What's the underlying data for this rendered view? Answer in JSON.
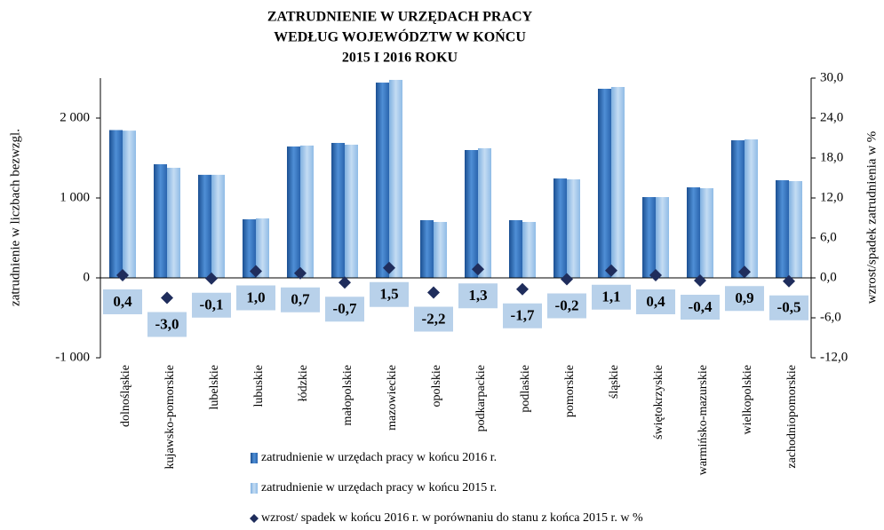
{
  "chart_data": {
    "type": "bar",
    "title": [
      "ZATRUDNIENIE  W  URZĘDACH  PRACY",
      "WEDŁUG  WOJEWÓDZTW  W  KOŃCU",
      "2015  I  2016 ROKU"
    ],
    "y_label": "zatrudnienie  w liczbach bezwzgl.",
    "y2_label": "wzrost/spadek zatrudnienia w %",
    "categories": [
      "dolnośląskie",
      "kujawsko-pomorskie",
      "lubelskie",
      "lubuskie",
      "łódzkie",
      "małopolskie",
      "mazowieckie",
      "opolskie",
      "podkarpackie",
      "podlaskie",
      "pomorskie",
      "śląskie",
      "świętokrzyskie",
      "warmińsko-mazurskie",
      "wielkopolskie",
      "zachodniopomorskie"
    ],
    "series": [
      {
        "name": "zatrudnienie w urzędach pracy w końcu 2016 r.",
        "color": "#2f6fb8",
        "values": [
          1850,
          1422,
          1290,
          733,
          1644,
          1689,
          2444,
          722,
          1600,
          722,
          1244,
          2367,
          1011,
          1133,
          1722,
          1222
        ]
      },
      {
        "name": "zatrudnienie  w urzędach pracy w końcu 2015 r.",
        "color": "#9dc4e8",
        "values": [
          1843,
          1378,
          1290,
          744,
          1656,
          1667,
          2478,
          700,
          1622,
          700,
          1233,
          2389,
          1011,
          1122,
          1733,
          1211
        ]
      },
      {
        "name": "wzrost/ spadek  w  końcu 2016 r. w porównaniu do stanu z końca 2015 r. w %",
        "color": "#1f2d5c",
        "axis": "y2",
        "values": [
          0.4,
          -3.0,
          -0.1,
          1.0,
          0.7,
          -0.7,
          1.5,
          -2.2,
          1.3,
          -1.7,
          -0.2,
          1.1,
          0.4,
          -0.4,
          0.9,
          -0.5
        ],
        "value_labels": [
          "0,4",
          "-3,0",
          "-0,1",
          "1,0",
          "0,7",
          "-0,7",
          "1,5",
          "-2,2",
          "1,3",
          "-1,7",
          "-0,2",
          "1,1",
          "0,4",
          "-0,4",
          "0,9",
          "-0,5"
        ]
      }
    ],
    "ylim": [
      -1000,
      2500
    ],
    "yticks": [
      {
        "value": -1000,
        "label": "-1 000"
      },
      0,
      {
        "value": 1000,
        "label": "1 000"
      },
      {
        "value": 2000,
        "label": "2 000"
      }
    ],
    "y2lim": [
      -12,
      30
    ],
    "y2ticks": [
      {
        "value": -12,
        "label": "-12,0"
      },
      {
        "value": -6,
        "label": "-6,0"
      },
      {
        "value": 0,
        "label": "0,0"
      },
      {
        "value": 6,
        "label": "6,0"
      },
      {
        "value": 12,
        "label": "12,0"
      },
      {
        "value": 18,
        "label": "18,0"
      },
      {
        "value": 24,
        "label": "24,0"
      },
      {
        "value": 30,
        "label": "30,0"
      }
    ],
    "grid": false
  }
}
